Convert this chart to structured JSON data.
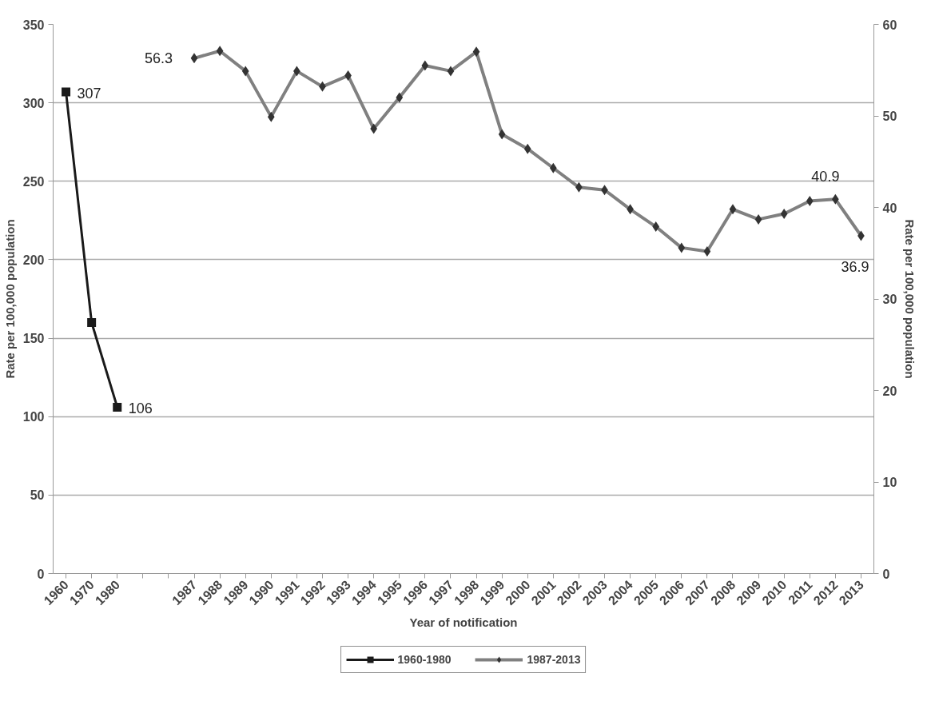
{
  "chart_data": {
    "type": "line",
    "xlabel": "Year of notification",
    "ylabel": "Rate per 100,000 population",
    "y2label": "Rate per 100,000 population",
    "categories": [
      "1960",
      "1970",
      "1980",
      null,
      null,
      "1987",
      "1988",
      "1989",
      "1990",
      "1991",
      "1992",
      "1993",
      "1994",
      "1995",
      "1996",
      "1997",
      "1998",
      "1999",
      "2000",
      "2001",
      "2002",
      "2003",
      "2004",
      "2005",
      "2006",
      "2007",
      "2008",
      "2009",
      "2010",
      "2011",
      "2012",
      "2013"
    ],
    "series": [
      {
        "name": "1960-1980",
        "color": "#1a1a1a",
        "marker": "square",
        "values": [
          307,
          160,
          106,
          null,
          null,
          null,
          null,
          null,
          null,
          null,
          null,
          null,
          null,
          null,
          null,
          null,
          null,
          null,
          null,
          null,
          null,
          null,
          null,
          null,
          null,
          null,
          null,
          null,
          null,
          null,
          null,
          null
        ],
        "value_labels": [
          "307",
          null,
          "106",
          null,
          null,
          null,
          null,
          null,
          null,
          null,
          null,
          null,
          null,
          null,
          null,
          null,
          null,
          null,
          null,
          null,
          null,
          null,
          null,
          null,
          null,
          null,
          null,
          null,
          null,
          null,
          null,
          null
        ]
      },
      {
        "name": "1987-2013",
        "color": "#808080",
        "marker": "diamond",
        "axis": "y2",
        "values": [
          null,
          null,
          null,
          null,
          null,
          56.3,
          57.1,
          54.9,
          49.9,
          54.9,
          53.2,
          54.4,
          48.6,
          52.0,
          55.5,
          54.9,
          57.0,
          48.0,
          46.4,
          44.3,
          42.2,
          41.9,
          39.8,
          37.9,
          35.6,
          35.2,
          39.8,
          38.7,
          39.3,
          40.7,
          40.9,
          36.9
        ],
        "value_labels": [
          null,
          null,
          null,
          null,
          null,
          "56.3",
          null,
          null,
          null,
          null,
          null,
          null,
          null,
          null,
          null,
          null,
          null,
          null,
          null,
          null,
          null,
          null,
          null,
          null,
          null,
          null,
          null,
          null,
          null,
          null,
          "40.9",
          "36.9"
        ]
      }
    ],
    "ylim": [
      0,
      350
    ],
    "yticks": [
      0,
      50,
      100,
      150,
      200,
      250,
      300,
      350
    ],
    "y2lim": [
      0,
      60
    ],
    "y2ticks": [
      0,
      10,
      20,
      30,
      40,
      50,
      60
    ],
    "grid": "y",
    "legend": "bottom",
    "line_style": "solid"
  }
}
